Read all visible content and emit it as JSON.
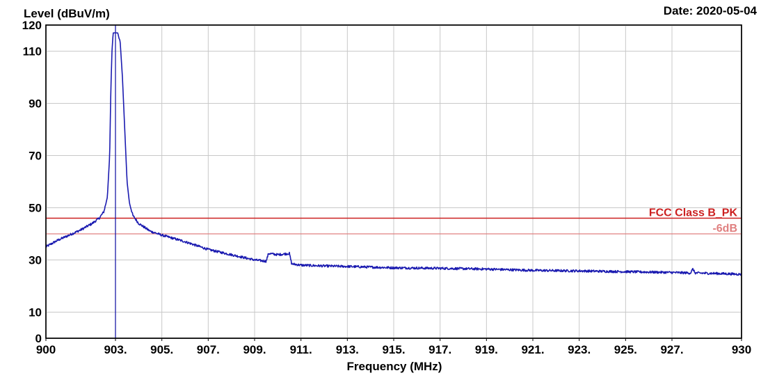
{
  "chart_data": {
    "type": "line",
    "ylabel": "Level (dBuV/m)",
    "xlabel": "Frequency (MHz)",
    "date_text": "Date: 2020-05-04",
    "xlim": [
      900,
      930
    ],
    "ylim": [
      0,
      120
    ],
    "y_ticks": [
      {
        "value": 0,
        "label": "0"
      },
      {
        "value": 10,
        "label": "10"
      },
      {
        "value": 30,
        "label": "30"
      },
      {
        "value": 50,
        "label": "50"
      },
      {
        "value": 70,
        "label": "70"
      },
      {
        "value": 90,
        "label": "90"
      },
      {
        "value": 110,
        "label": "110"
      },
      {
        "value": 120,
        "label": "120"
      }
    ],
    "x_ticks": [
      {
        "value": 900,
        "label": "900"
      },
      {
        "value": 903,
        "label": "903."
      },
      {
        "value": 905,
        "label": "905."
      },
      {
        "value": 907,
        "label": "907."
      },
      {
        "value": 909,
        "label": "909."
      },
      {
        "value": 911,
        "label": "911."
      },
      {
        "value": 913,
        "label": "913."
      },
      {
        "value": 915,
        "label": "915."
      },
      {
        "value": 917,
        "label": "917."
      },
      {
        "value": 919,
        "label": "919."
      },
      {
        "value": 921,
        "label": "921."
      },
      {
        "value": 923,
        "label": "923."
      },
      {
        "value": 925,
        "label": "925."
      },
      {
        "value": 927,
        "label": "927."
      },
      {
        "value": 930,
        "label": "930"
      }
    ],
    "grid": true,
    "limit_lines": [
      {
        "name": "FCC Class B_PK",
        "value": 46,
        "color": "#cc2020"
      },
      {
        "name": "-6dB",
        "value": 40,
        "color": "#e08080"
      }
    ],
    "marker_line": {
      "x": 903.0,
      "color": "#1a1aa8"
    },
    "series": [
      {
        "color": "#1a1ab0",
        "x": [
          900.0,
          900.5,
          901.0,
          901.5,
          902.0,
          902.3,
          902.5,
          902.65,
          902.75,
          902.8,
          902.85,
          902.9,
          903.1,
          903.15,
          903.2,
          903.3,
          903.4,
          903.5,
          903.6,
          903.75,
          904.0,
          904.5,
          905.0,
          906.0,
          907.0,
          908.0,
          909.0,
          909.5,
          909.6,
          910.0,
          910.5,
          910.6,
          911.0,
          912.0,
          913.0,
          915.0,
          917.0,
          919.0,
          921.0,
          923.0,
          925.0,
          927.0,
          927.8,
          927.9,
          928.0,
          929.0,
          930.0
        ],
        "values": [
          35.0,
          37.5,
          39.5,
          41.5,
          44.0,
          46.0,
          48.5,
          54.0,
          70.0,
          95.0,
          110.0,
          117.0,
          117.0,
          115.0,
          114.0,
          100.0,
          80.0,
          60.0,
          52.0,
          47.0,
          44.0,
          41.0,
          39.5,
          37.0,
          34.0,
          32.0,
          30.0,
          29.5,
          32.5,
          32.0,
          32.5,
          28.5,
          28.0,
          27.7,
          27.5,
          27.0,
          26.8,
          26.5,
          26.0,
          25.8,
          25.5,
          25.2,
          25.0,
          26.5,
          25.0,
          24.8,
          24.5
        ]
      }
    ]
  }
}
